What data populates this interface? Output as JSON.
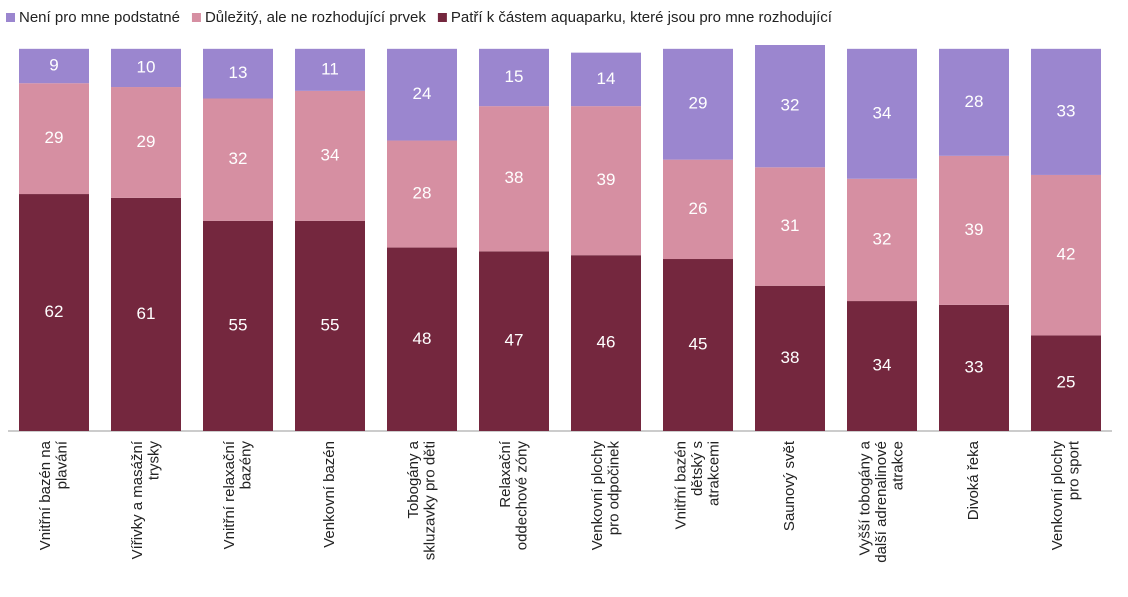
{
  "chart_data": {
    "type": "stacked_bar",
    "categories": [
      [
        "Vnitřní bazén na",
        "plavání"
      ],
      [
        "Vířivky a masážní",
        "trysky"
      ],
      [
        "Vnitřní relaxační",
        "bazény"
      ],
      [
        "Venkovní bazén"
      ],
      [
        "Tobogány a",
        "skluzavky pro děti"
      ],
      [
        "Relaxační",
        "oddechové zóny"
      ],
      [
        "Venkovní plochy",
        "pro odpočinek"
      ],
      [
        "Vnitřní bazén",
        "dětský s",
        "atrakcemi"
      ],
      [
        "Saunový svět"
      ],
      [
        "Vyšší tobogány a",
        "další adrenalinové",
        "atrakce"
      ],
      [
        "Divoká řeka"
      ],
      [
        "Venkovní plochy",
        "pro sport"
      ]
    ],
    "series": [
      {
        "name": "Není pro mne podstatné",
        "color": "#9b86cf",
        "values": [
          9,
          10,
          13,
          11,
          24,
          15,
          14,
          29,
          32,
          34,
          28,
          33
        ]
      },
      {
        "name": "Důležitý, ale ne rozhodující prvek",
        "color": "#d68fa2",
        "values": [
          29,
          29,
          32,
          34,
          28,
          38,
          39,
          26,
          31,
          32,
          39,
          42
        ]
      },
      {
        "name": "Patří k částem aquaparku, které jsou pro mne rozhodující",
        "color": "#74273e",
        "values": [
          62,
          61,
          55,
          55,
          48,
          47,
          46,
          45,
          38,
          34,
          33,
          25
        ]
      }
    ]
  }
}
